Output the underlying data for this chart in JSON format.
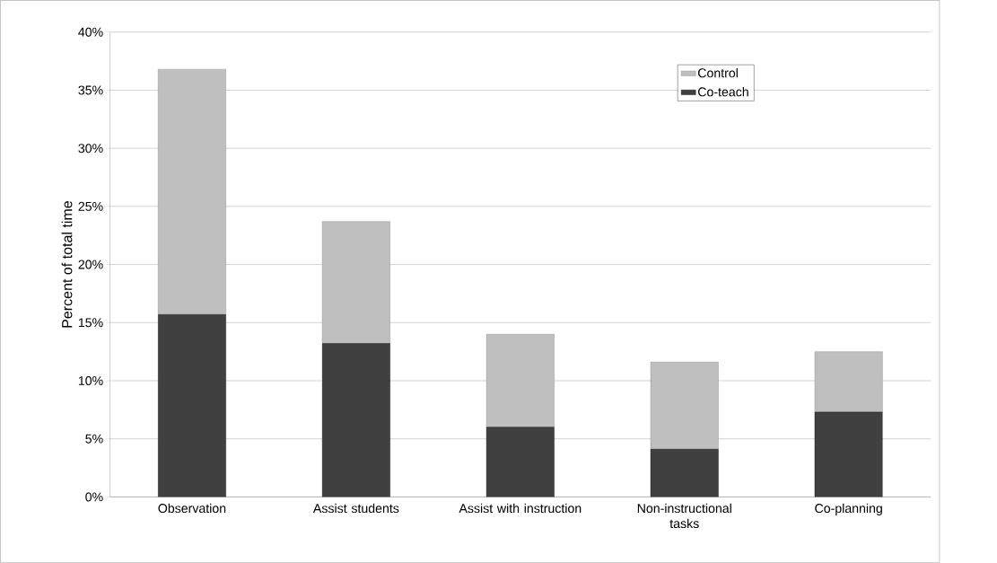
{
  "chart_data": {
    "type": "bar",
    "stacked": true,
    "ylabel": "Percent of total time",
    "categories": [
      "Observation",
      "Assist students",
      "Assist with instruction",
      "Non-instructional tasks",
      "Co-planning"
    ],
    "series": [
      {
        "name": "Co-teach",
        "color": "#404040",
        "values": [
          15.7,
          13.2,
          6.0,
          4.1,
          7.3
        ]
      },
      {
        "name": "Control",
        "color": "#bfbfbf",
        "values": [
          21.1,
          10.5,
          8.0,
          7.5,
          5.2
        ]
      }
    ],
    "ylim": [
      0,
      40
    ],
    "yticks": [
      {
        "value": 0,
        "label": "0%"
      },
      {
        "value": 5,
        "label": "5%"
      },
      {
        "value": 10,
        "label": "10%"
      },
      {
        "value": 15,
        "label": "15%"
      },
      {
        "value": 20,
        "label": "20%"
      },
      {
        "value": 25,
        "label": "25%"
      },
      {
        "value": 30,
        "label": "30%"
      },
      {
        "value": 35,
        "label": "35%"
      },
      {
        "value": 40,
        "label": "40%"
      }
    ],
    "grid": "y",
    "legend": "top right"
  }
}
